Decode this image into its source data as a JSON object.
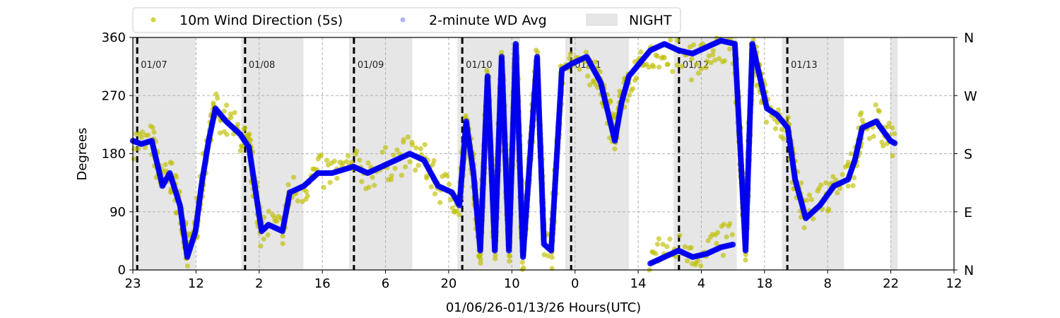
{
  "chart_data": {
    "type": "scatter",
    "title": "",
    "xlabel": "01/06/26-01/13/26  Hours(UTC)",
    "ylabel": "Degrees",
    "xlim_hours": [
      0,
      169
    ],
    "ylim": [
      0,
      360
    ],
    "x_tick_labels": [
      "23",
      "12",
      "2",
      "16",
      "6",
      "20",
      "10",
      "0",
      "14",
      "4",
      "18",
      "8",
      "22",
      "12"
    ],
    "x_tick_step_hours": 13,
    "y_ticks": [
      0,
      90,
      180,
      270,
      360
    ],
    "y_tick_labels": [
      "0",
      "90",
      "180",
      "270",
      "360"
    ],
    "right_tick_labels": [
      "N",
      "E",
      "S",
      "W",
      "N"
    ],
    "grid": true,
    "legend": {
      "placement": "top",
      "entries": [
        "10m Wind Direction (5s)",
        "2-minute WD Avg",
        "NIGHT"
      ]
    },
    "colors": {
      "wd5s": "#bfbf00",
      "wd2min": "#0000ee",
      "night": "#e6e6e6"
    },
    "night_periods_hours": [
      [
        0,
        12.9
      ],
      [
        22.3,
        35.1
      ],
      [
        44.5,
        57.5
      ],
      [
        66.8,
        79.7
      ],
      [
        89.0,
        102.1
      ],
      [
        111.3,
        124.3
      ],
      [
        133.6,
        146.4
      ],
      [
        155.9,
        157.4
      ]
    ],
    "day_markers": [
      {
        "hour": 0.9,
        "label": "01/07"
      },
      {
        "hour": 23.1,
        "label": "01/08"
      },
      {
        "hour": 45.5,
        "label": "01/09"
      },
      {
        "hour": 67.8,
        "label": "01/10"
      },
      {
        "hour": 90.2,
        "label": "01/11"
      },
      {
        "hour": 112.4,
        "label": "01/12"
      },
      {
        "hour": 134.7,
        "label": "01/13"
      }
    ],
    "series": [
      {
        "name": "10m Wind Direction (5s)",
        "spread_deg": 28,
        "segments": [
          [
            [
              0,
              200
            ],
            [
              1.7,
              195
            ],
            [
              3.9,
              200
            ],
            [
              6.1,
              130
            ],
            [
              7.6,
              150
            ],
            [
              9.7,
              100
            ],
            [
              11.2,
              20
            ],
            [
              12.9,
              60
            ],
            [
              14.1,
              130
            ],
            [
              15.6,
              200
            ],
            [
              17.0,
              250
            ],
            [
              19.2,
              230
            ],
            [
              22.1,
              210
            ],
            [
              23.9,
              190
            ],
            [
              26.5,
              60
            ],
            [
              27.9,
              70
            ],
            [
              30.8,
              60
            ],
            [
              32.3,
              120
            ],
            [
              35.2,
              130
            ],
            [
              38.1,
              150
            ],
            [
              41.0,
              150
            ],
            [
              45.4,
              160
            ],
            [
              48.3,
              150
            ],
            [
              51.2,
              160
            ],
            [
              54.1,
              170
            ],
            [
              57.0,
              180
            ],
            [
              59.9,
              170
            ],
            [
              62.8,
              130
            ],
            [
              65.7,
              120
            ],
            [
              67.2,
              100
            ],
            [
              68.6,
              230
            ],
            [
              70.1,
              150
            ],
            [
              71.5,
              30
            ],
            [
              73.0,
              300
            ],
            [
              74.5,
              30
            ],
            [
              75.9,
              330
            ],
            [
              77.4,
              30
            ],
            [
              78.8,
              350
            ],
            [
              80.3,
              20
            ],
            [
              83.2,
              330
            ],
            [
              84.6,
              40
            ],
            [
              86.1,
              30
            ],
            [
              88.3,
              310
            ],
            [
              90.5,
              310
            ],
            [
              93.4,
              320
            ],
            [
              96.3,
              280
            ],
            [
              99.2,
              210
            ],
            [
              100.6,
              260
            ],
            [
              102.1,
              290
            ],
            [
              104.3,
              310
            ],
            [
              106.5,
              320
            ],
            [
              109.4,
              330
            ],
            [
              112.3,
              330
            ],
            [
              115.2,
              320
            ],
            [
              118.1,
              335
            ],
            [
              121.0,
              345
            ],
            [
              123.9,
              345
            ],
            [
              126.1,
              30
            ],
            [
              127.5,
              345
            ],
            [
              129.0,
              290
            ],
            [
              130.5,
              250
            ],
            [
              132.6,
              240
            ],
            [
              134.8,
              220
            ],
            [
              136.3,
              140
            ],
            [
              138.5,
              85
            ],
            [
              141.4,
              105
            ],
            [
              144.3,
              130
            ],
            [
              147.2,
              140
            ],
            [
              148.6,
              170
            ],
            [
              150.1,
              225
            ],
            [
              153.0,
              230
            ],
            [
              155.9,
              200
            ],
            [
              157.1,
              195
            ]
          ],
          [
            [
              106.5,
              15
            ],
            [
              109.4,
              30
            ],
            [
              112.3,
              35
            ],
            [
              115.2,
              30
            ],
            [
              118.1,
              30
            ],
            [
              121.0,
              45
            ],
            [
              123.9,
              45
            ]
          ]
        ]
      },
      {
        "name": "2-minute WD Avg",
        "spread_deg": 0,
        "segments": [
          [
            [
              0,
              200
            ],
            [
              1.7,
              195
            ],
            [
              3.9,
              200
            ],
            [
              6.1,
              130
            ],
            [
              7.6,
              150
            ],
            [
              9.7,
              100
            ],
            [
              11.2,
              20
            ],
            [
              12.9,
              60
            ],
            [
              14.1,
              130
            ],
            [
              15.6,
              200
            ],
            [
              17.0,
              250
            ],
            [
              19.2,
              230
            ],
            [
              22.1,
              210
            ],
            [
              23.9,
              190
            ],
            [
              26.5,
              60
            ],
            [
              27.9,
              70
            ],
            [
              30.8,
              60
            ],
            [
              32.3,
              120
            ],
            [
              35.2,
              130
            ],
            [
              38.1,
              150
            ],
            [
              41.0,
              150
            ],
            [
              45.4,
              160
            ],
            [
              48.3,
              150
            ],
            [
              51.2,
              160
            ],
            [
              54.1,
              170
            ],
            [
              57.0,
              180
            ],
            [
              59.9,
              170
            ],
            [
              62.8,
              130
            ],
            [
              65.7,
              120
            ],
            [
              67.2,
              100
            ],
            [
              68.6,
              230
            ],
            [
              70.1,
              150
            ],
            [
              71.5,
              30
            ],
            [
              73.0,
              300
            ],
            [
              74.5,
              30
            ],
            [
              75.9,
              330
            ],
            [
              77.4,
              30
            ],
            [
              78.8,
              350
            ],
            [
              80.3,
              20
            ],
            [
              83.2,
              330
            ],
            [
              84.6,
              40
            ],
            [
              86.1,
              30
            ],
            [
              88.3,
              310
            ],
            [
              90.5,
              320
            ],
            [
              93.4,
              330
            ],
            [
              96.3,
              290
            ],
            [
              99.2,
              200
            ],
            [
              100.6,
              260
            ],
            [
              102.1,
              300
            ],
            [
              104.3,
              320
            ],
            [
              106.5,
              340
            ],
            [
              109.4,
              350
            ],
            [
              112.3,
              340
            ],
            [
              115.2,
              335
            ],
            [
              118.1,
              345
            ],
            [
              121.0,
              355
            ],
            [
              123.9,
              350
            ],
            [
              126.1,
              30
            ],
            [
              127.5,
              350
            ],
            [
              129.0,
              300
            ],
            [
              130.5,
              250
            ],
            [
              132.6,
              240
            ],
            [
              134.8,
              220
            ],
            [
              136.3,
              140
            ],
            [
              138.5,
              80
            ],
            [
              141.4,
              100
            ],
            [
              144.3,
              130
            ],
            [
              147.2,
              140
            ],
            [
              148.6,
              170
            ],
            [
              150.1,
              220
            ],
            [
              153.0,
              230
            ],
            [
              155.9,
              200
            ],
            [
              157.1,
              195
            ]
          ],
          [
            [
              106.5,
              10
            ],
            [
              109.4,
              20
            ],
            [
              112.3,
              30
            ],
            [
              115.2,
              20
            ],
            [
              118.1,
              25
            ],
            [
              121.0,
              35
            ],
            [
              123.9,
              40
            ]
          ]
        ]
      }
    ]
  }
}
